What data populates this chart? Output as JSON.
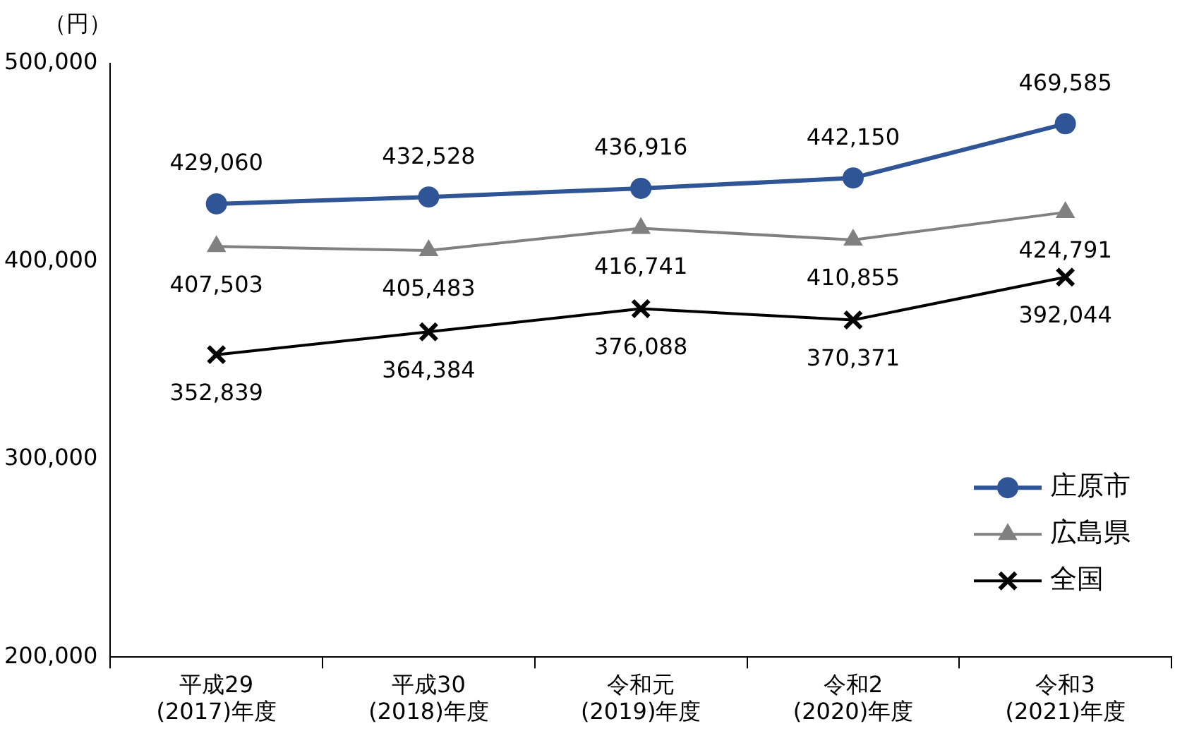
{
  "chart_data": {
    "type": "line",
    "ylabel": "（円）",
    "categories": [
      "平成29\n(2017)年度",
      "平成30\n(2018)年度",
      "令和元\n(2019)年度",
      "令和2\n(2020)年度",
      "令和3\n(2021)年度"
    ],
    "series": [
      {
        "name": "庄原市",
        "color": "#2f5597",
        "marker": "circle",
        "values": [
          429060,
          432528,
          436916,
          442150,
          469585
        ],
        "value_labels": [
          "429,060",
          "432,528",
          "436,916",
          "442,150",
          "469,585"
        ]
      },
      {
        "name": "広島県",
        "color": "#808080",
        "marker": "triangle",
        "values": [
          407503,
          405483,
          416741,
          410855,
          424791
        ],
        "value_labels": [
          "407,503",
          "405,483",
          "416,741",
          "410,855",
          "424,791"
        ]
      },
      {
        "name": "全国",
        "color": "#000000",
        "marker": "cross",
        "values": [
          352839,
          364384,
          376088,
          370371,
          392044
        ],
        "value_labels": [
          "352,839",
          "364,384",
          "376,088",
          "370,371",
          "392,044"
        ]
      }
    ],
    "ylim": [
      200000,
      500000
    ],
    "yticks": [
      {
        "value": 200000,
        "label": "200,000"
      },
      {
        "value": 300000,
        "label": "300,000"
      },
      {
        "value": 400000,
        "label": "400,000"
      },
      {
        "value": 500000,
        "label": "500,000"
      }
    ],
    "grid": false,
    "legend": "right"
  }
}
